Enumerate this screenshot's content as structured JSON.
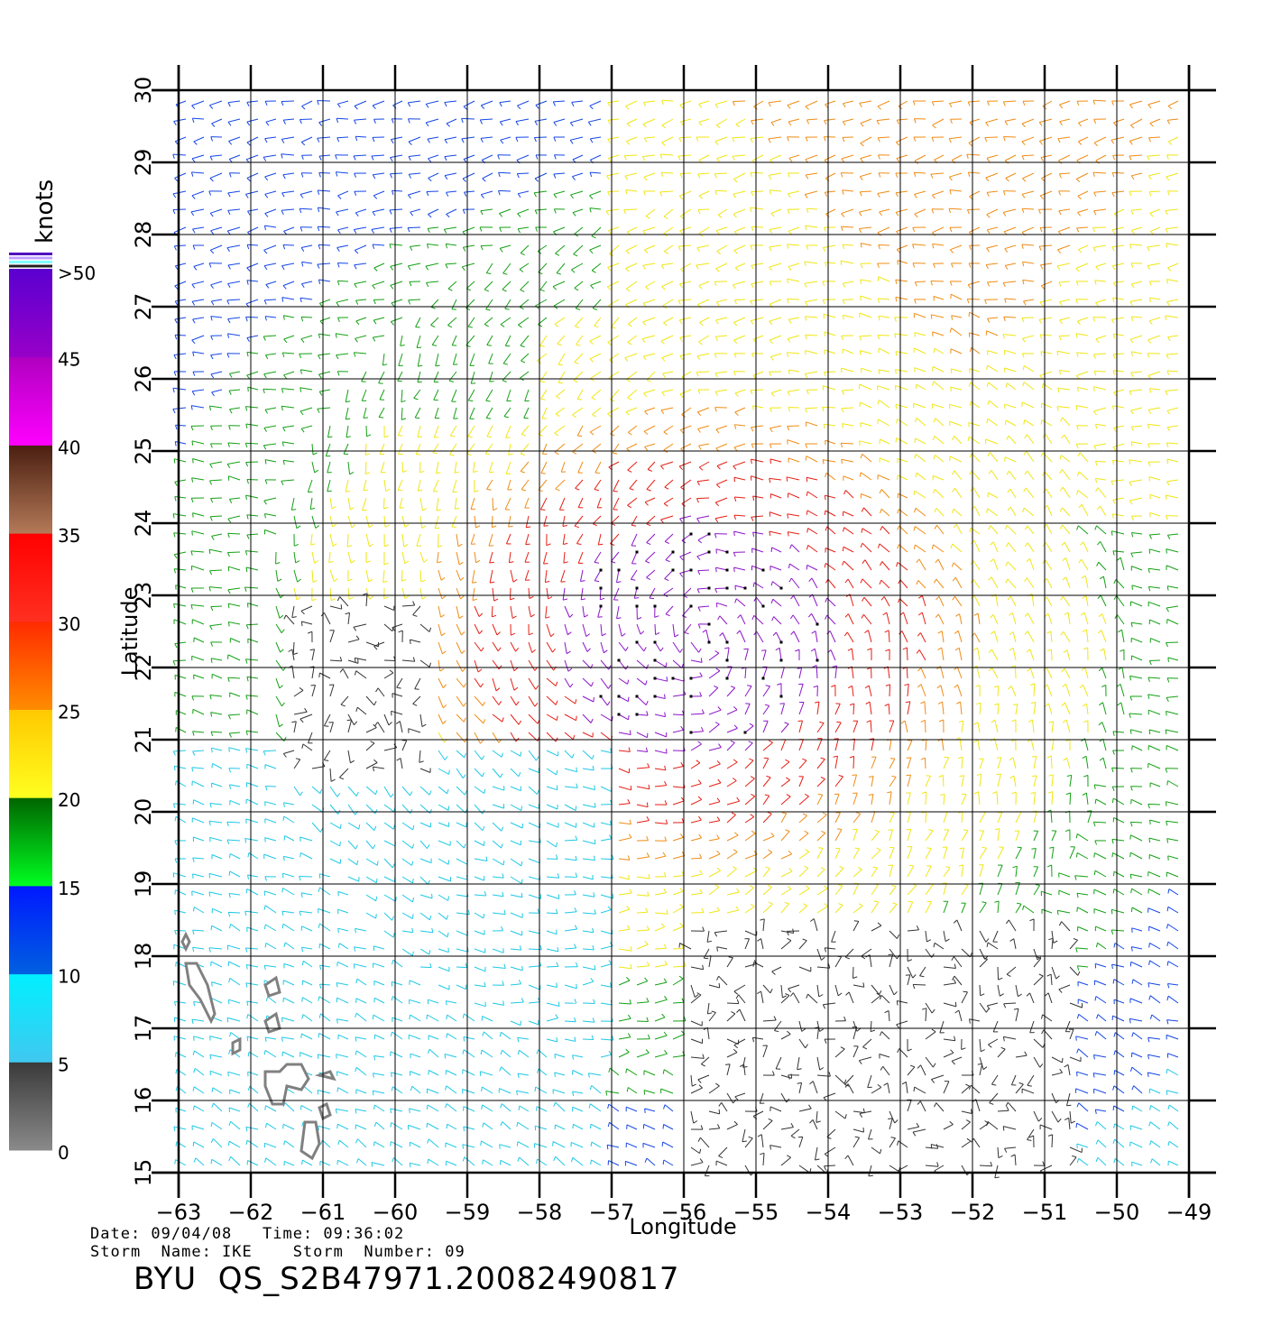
{
  "map": {
    "x_axis_label": "Longitude",
    "y_axis_label": "Latitude",
    "lon_ticks": [
      "-63",
      "-62",
      "-61",
      "-60",
      "-59",
      "-58",
      "-57",
      "-56",
      "-55",
      "-54",
      "-53",
      "-52",
      "-51",
      "-50",
      "-49"
    ],
    "lat_ticks": [
      "15",
      "16",
      "17",
      "18",
      "19",
      "20",
      "21",
      "22",
      "23",
      "24",
      "25",
      "26",
      "27",
      "28",
      "29",
      "30"
    ],
    "lon_range": [
      -63,
      -49
    ],
    "lat_range": [
      15,
      30
    ],
    "grid": true
  },
  "colorbar": {
    "units": "knots",
    "labels": [
      "0",
      "5",
      "10",
      "15",
      "20",
      "25",
      "30",
      "35",
      "40",
      "45",
      ">50"
    ],
    "bins": [
      {
        "from": 0,
        "to": 5,
        "top": "#3a3a3a",
        "bottom": "#8a8a8a"
      },
      {
        "from": 5,
        "to": 10,
        "top": "#00f0ff",
        "bottom": "#40c8f0"
      },
      {
        "from": 10,
        "to": 15,
        "top": "#0018ff",
        "bottom": "#0060e0"
      },
      {
        "from": 15,
        "to": 20,
        "top": "#006400",
        "bottom": "#00ff20"
      },
      {
        "from": 20,
        "to": 25,
        "top": "#ffc800",
        "bottom": "#ffff20"
      },
      {
        "from": 25,
        "to": 30,
        "top": "#ff2a00",
        "bottom": "#ff8c00"
      },
      {
        "from": 30,
        "to": 35,
        "top": "#ff0000",
        "bottom": "#ff3020"
      },
      {
        "from": 35,
        "to": 40,
        "top": "#4a1e10",
        "bottom": "#b47a58"
      },
      {
        "from": 40,
        "to": 45,
        "top": "#b000c0",
        "bottom": "#ff00ff"
      },
      {
        "from": 45,
        "to": 50,
        "top": "#5a00d0",
        "bottom": "#9800c8"
      }
    ],
    "cap_colors": [
      "#5000c0",
      "#c0a0ff",
      "#80ffff",
      "#202020"
    ]
  },
  "wind_field": {
    "description_colors": {
      "calm": "#333333",
      "light": "#1ec8e6",
      "moderate": "#1446e6",
      "fresh": "#14a014",
      "strong": "#f0e614",
      "gale": "#f08c14",
      "storm": "#e61e14",
      "violent": "#8c14c8",
      "flag": "#000000"
    },
    "land_outline_color": "#808080"
  },
  "caption": {
    "date_line": "Date: 09/04/08   Time: 09:36:02",
    "storm_line": "Storm  Name: IKE    Storm  Number: 09",
    "file_line": "BYU  QS_S2B47971.20082490817"
  }
}
